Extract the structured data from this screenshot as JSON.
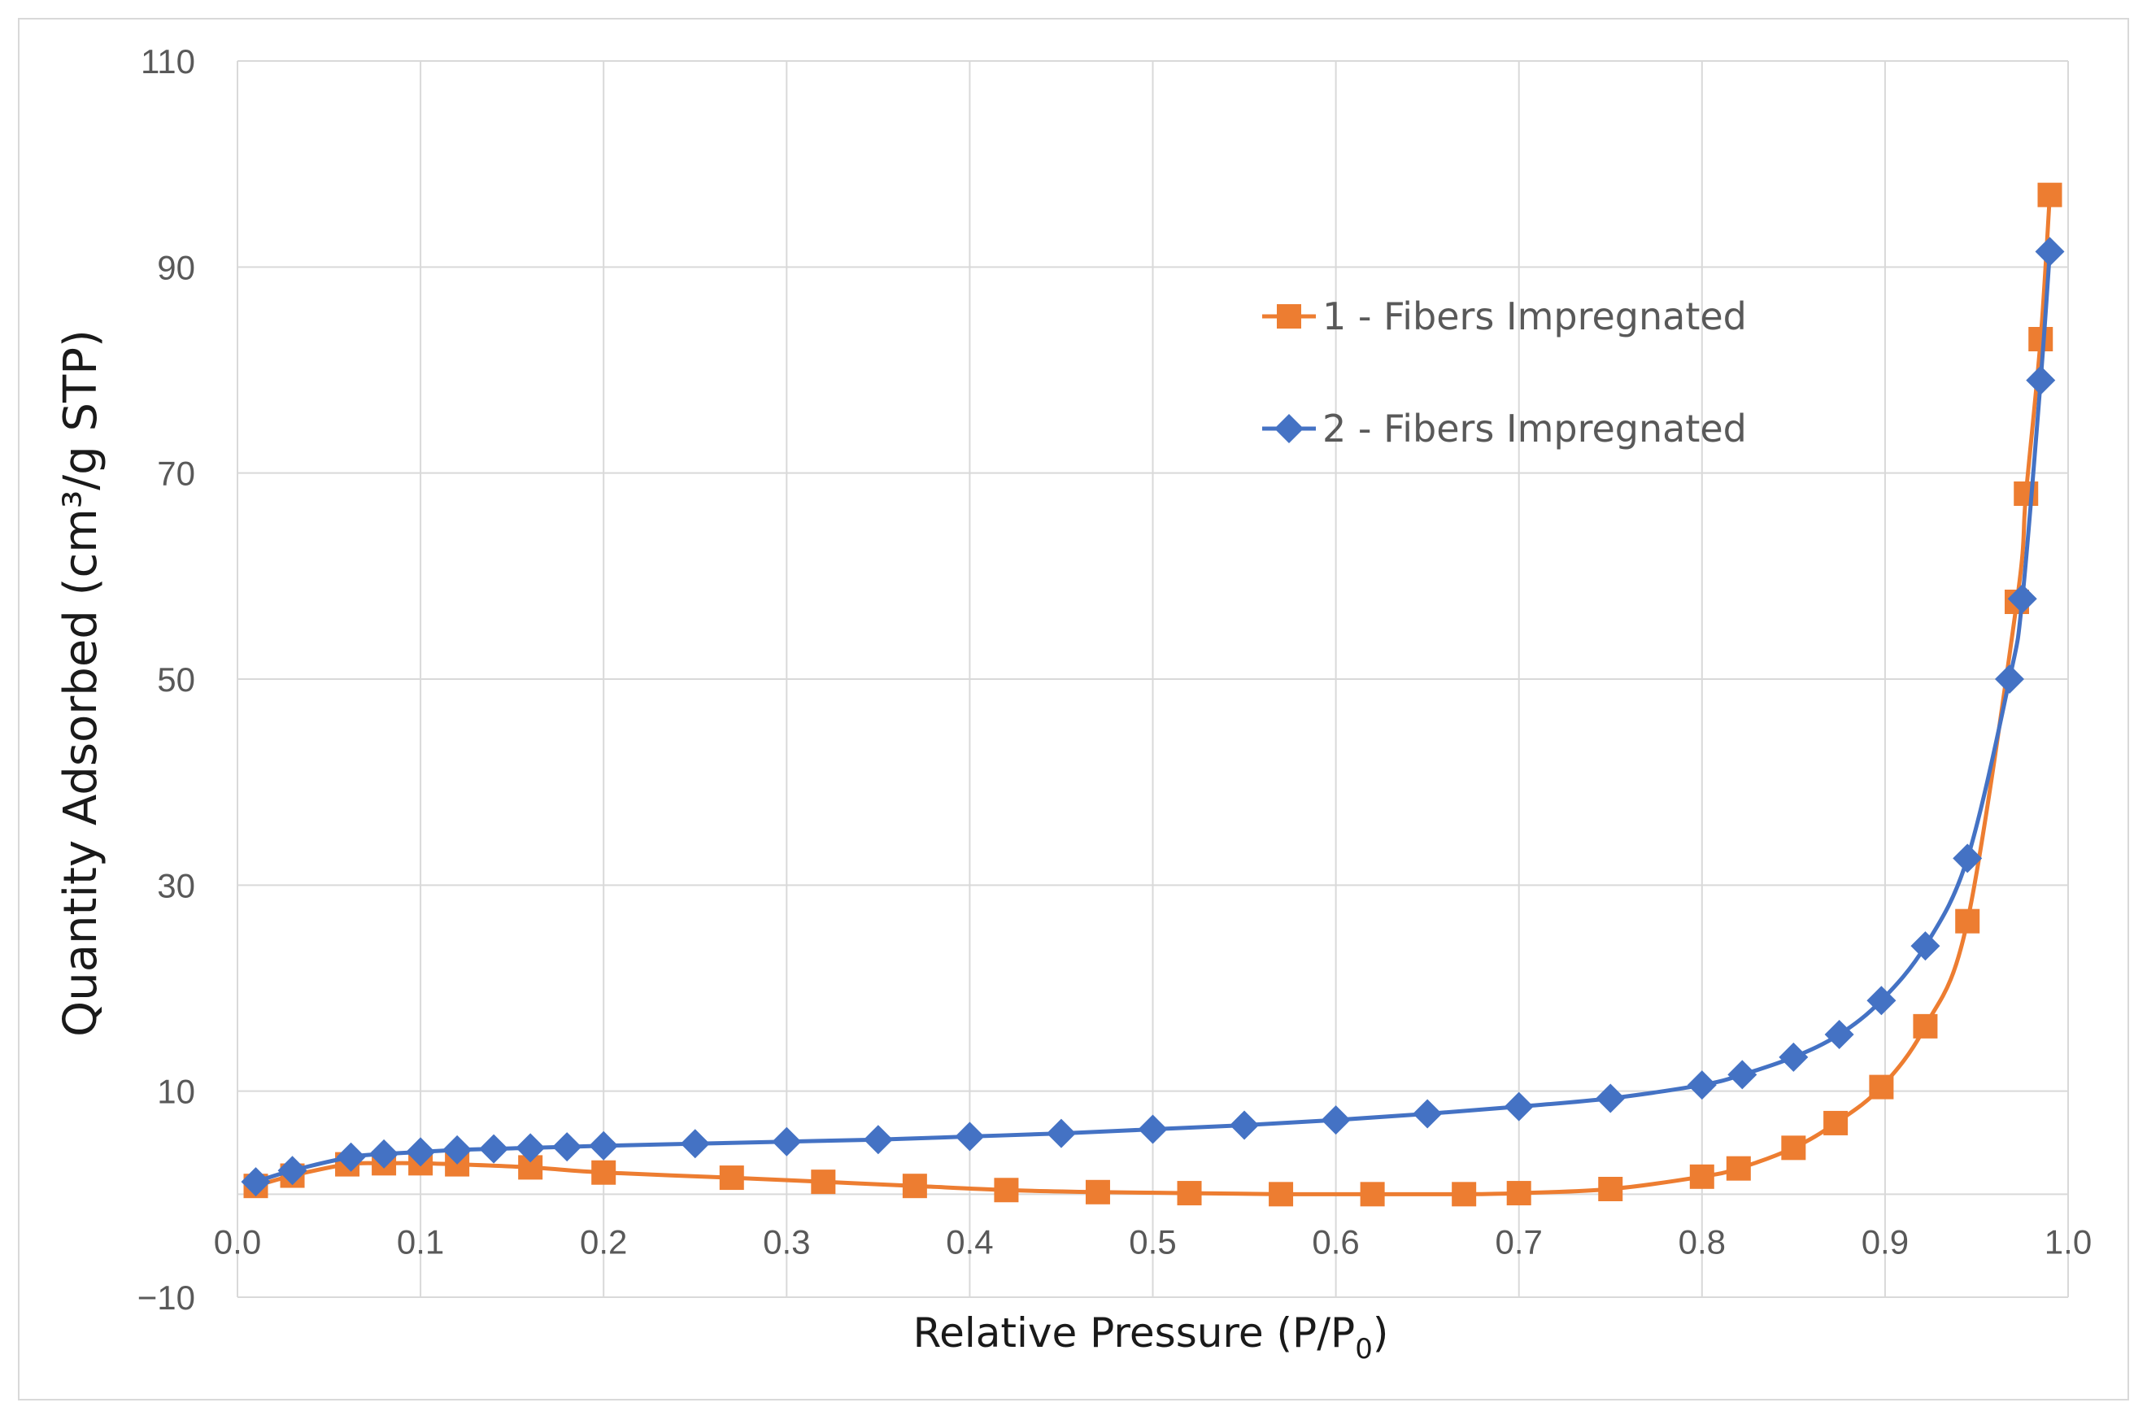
{
  "chart_data": {
    "type": "line",
    "xlabel": "Relative Pressure (P/P",
    "xlabel_subscript": "0",
    "xlabel_close": ")",
    "ylabel": "Quantity Adsorbed (cm³/g STP)",
    "xlim": [
      0.0,
      1.0
    ],
    "ylim": [
      -10,
      110
    ],
    "x_ticks": [
      "0.0",
      "0.1",
      "0.2",
      "0.3",
      "0.4",
      "0.5",
      "0.6",
      "0.7",
      "0.8",
      "0.9",
      "1.0"
    ],
    "y_ticks": [
      "−10",
      "10",
      "30",
      "50",
      "70",
      "90",
      "110"
    ],
    "grid": true,
    "legend_position": "upper-center-right",
    "series": [
      {
        "name": "1 - Fibers Impregnated",
        "color": "#ed7d31",
        "marker": "square",
        "x": [
          0.01,
          0.03,
          0.06,
          0.08,
          0.1,
          0.12,
          0.16,
          0.2,
          0.27,
          0.32,
          0.37,
          0.42,
          0.47,
          0.52,
          0.57,
          0.62,
          0.67,
          0.7,
          0.75,
          0.8,
          0.82,
          0.85,
          0.873,
          0.898,
          0.922,
          0.945,
          0.972,
          0.977,
          0.985,
          0.99
        ],
        "y": [
          0.8,
          1.8,
          2.9,
          3.0,
          3.0,
          2.9,
          2.6,
          2.1,
          1.6,
          1.2,
          0.8,
          0.4,
          0.2,
          0.1,
          0.0,
          0.0,
          0.0,
          0.1,
          0.5,
          1.7,
          2.5,
          4.5,
          6.9,
          10.4,
          16.3,
          26.5,
          57.5,
          68.0,
          83.0,
          97.0
        ]
      },
      {
        "name": "2 - Fibers Impregnated",
        "color": "#4472c4",
        "marker": "diamond",
        "x": [
          0.01,
          0.03,
          0.062,
          0.08,
          0.1,
          0.12,
          0.14,
          0.16,
          0.18,
          0.2,
          0.25,
          0.3,
          0.35,
          0.4,
          0.45,
          0.5,
          0.55,
          0.6,
          0.65,
          0.7,
          0.75,
          0.8,
          0.822,
          0.85,
          0.875,
          0.898,
          0.922,
          0.945,
          0.968,
          0.975,
          0.985,
          0.99
        ],
        "y": [
          1.2,
          2.3,
          3.6,
          3.9,
          4.1,
          4.3,
          4.4,
          4.5,
          4.6,
          4.7,
          4.9,
          5.1,
          5.3,
          5.6,
          5.9,
          6.3,
          6.7,
          7.2,
          7.8,
          8.5,
          9.3,
          10.6,
          11.6,
          13.3,
          15.5,
          18.8,
          24.1,
          32.6,
          50.0,
          57.8,
          79.0,
          91.5
        ]
      }
    ]
  }
}
